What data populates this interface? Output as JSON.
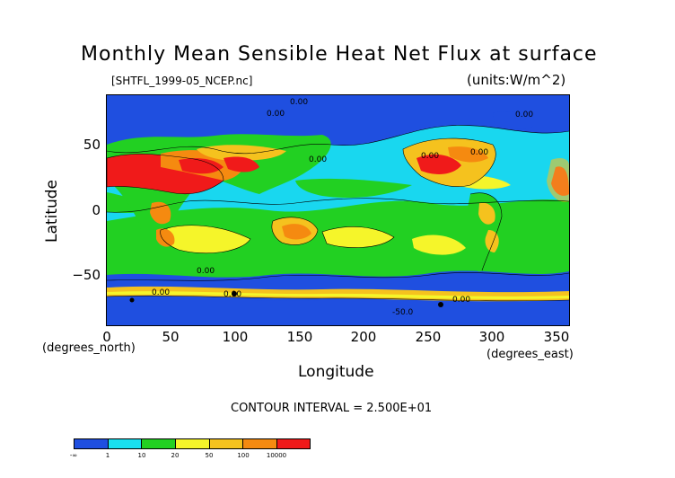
{
  "title": "Monthly Mean Sensible Heat Net Flux at surface",
  "file_label": "[SHTFL_1999-05_NCEP.nc]",
  "units_label": "(units:W/m^2)",
  "y_axis": {
    "label": "Latitude",
    "ticks": [
      "50",
      "0",
      "−50"
    ],
    "unit_label": "(degrees_north)"
  },
  "x_axis": {
    "label": "Longitude",
    "ticks": [
      "0",
      "50",
      "100",
      "150",
      "200",
      "250",
      "300",
      "350"
    ],
    "unit_label": "(degrees_east)"
  },
  "contour_interval": "CONTOUR INTERVAL = 2.500E+01",
  "contour_labels": [
    "0.00",
    "0.00",
    "0.00",
    "0.00",
    "0.00",
    "0.00",
    "0.00",
    "0.00",
    "0.00",
    "0.00",
    "-50.0"
  ],
  "colorbar": {
    "colors": [
      "#1f4fe0",
      "#19e0f0",
      "#22d022",
      "#f5f52a",
      "#f5c21e",
      "#f58a10",
      "#f01a1a"
    ],
    "labels": [
      "-∞",
      "1",
      "10",
      "20",
      "50",
      "100",
      "10000"
    ]
  }
}
